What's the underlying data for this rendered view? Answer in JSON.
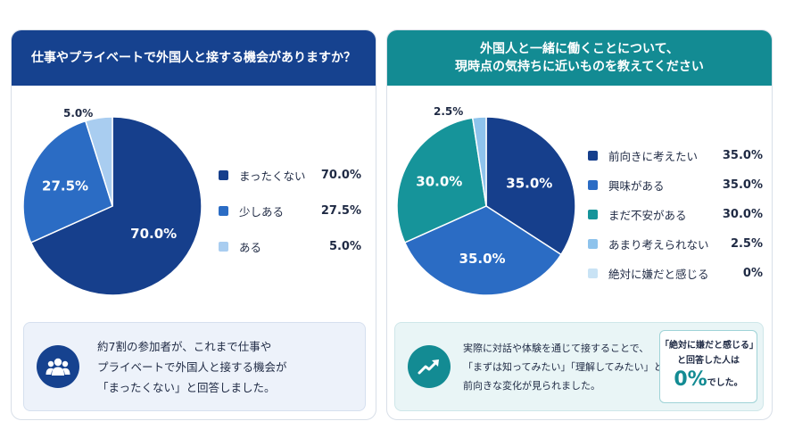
{
  "left": {
    "title": "仕事やプライベートで外国人と接する機会がありますか？",
    "note_lines": [
      "約7割の参加者が、これまで仕事や",
      "プライベートで外国人と接する機会が",
      "「まったくない」と回答しました。"
    ],
    "icon": "people-group-icon"
  },
  "right": {
    "title_lines": [
      "外国人と一緒に働くことについて、",
      "現時点の気持ちに近いものを教えてください"
    ],
    "note_lines": [
      "実際に対話や体験を通じて接することで、",
      "「まずは知ってみたい」「理解してみたい」という",
      "前向きな変化が見られました。"
    ],
    "icon": "trend-up-icon",
    "emphasis": {
      "line1": "「絶対に嫌だと感じる」",
      "line2": "と回答した人は",
      "big": "0%",
      "tail": "でした。"
    }
  },
  "chart_data": [
    {
      "type": "pie",
      "title": "仕事やプライベートで外国人と接する機会がありますか？",
      "categories": [
        "まったくない",
        "少しある",
        "ある"
      ],
      "values": [
        70.0,
        27.5,
        5.0
      ],
      "labels": [
        "70.0%",
        "27.5%",
        "5.0%"
      ],
      "colors": [
        "#163f8c",
        "#2b6cc4",
        "#a9cdf0"
      ],
      "legend_position": "right"
    },
    {
      "type": "pie",
      "title": "外国人と一緒に働くことについて、現時点の気持ちに近いものを教えてください",
      "categories": [
        "前向きに考えたい",
        "興味がある",
        "まだ不安がある",
        "あまり考えられない",
        "絶対に嫌だと感じる"
      ],
      "values": [
        35.0,
        35.0,
        30.0,
        2.5,
        0
      ],
      "labels": [
        "35.0%",
        "35.0%",
        "30.0%",
        "2.5%",
        "0%"
      ],
      "colors": [
        "#163f8c",
        "#2b6cc4",
        "#16949a",
        "#8ec3ec",
        "#c9e3f5"
      ],
      "legend_position": "right"
    }
  ]
}
